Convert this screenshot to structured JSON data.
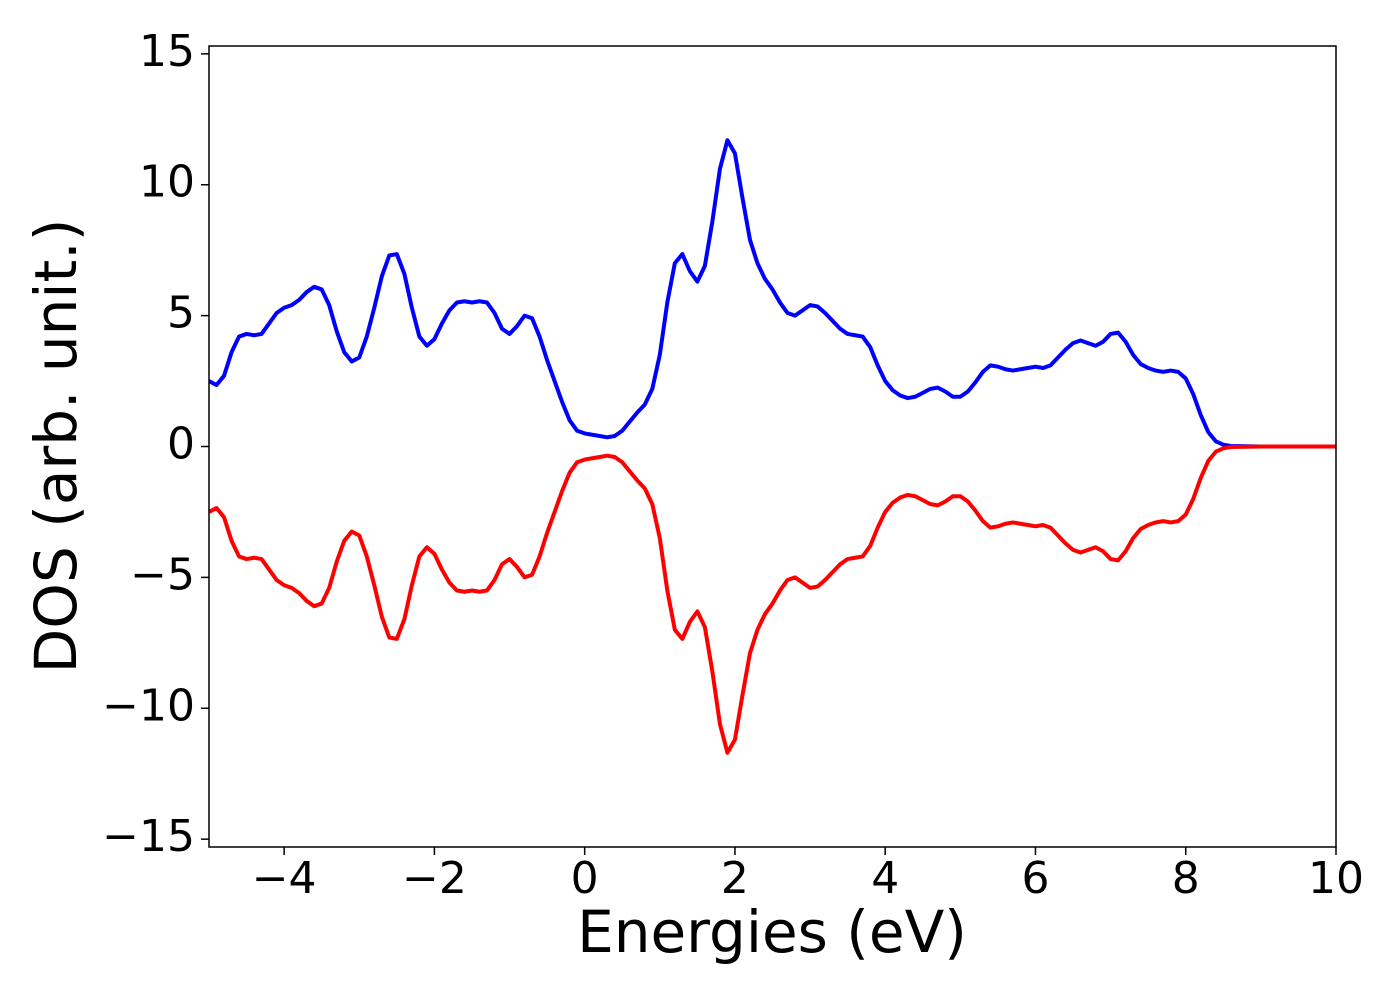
{
  "chart_data": {
    "type": "line",
    "xlabel": "Energies (eV)",
    "ylabel": "DOS (arb. unit.)",
    "x": [
      -5.0,
      -4.9,
      -4.8,
      -4.7,
      -4.6,
      -4.5,
      -4.4,
      -4.3,
      -4.2,
      -4.1,
      -4.0,
      -3.9,
      -3.8,
      -3.7,
      -3.6,
      -3.5,
      -3.4,
      -3.3,
      -3.2,
      -3.1,
      -3.0,
      -2.9,
      -2.8,
      -2.7,
      -2.6,
      -2.5,
      -2.4,
      -2.3,
      -2.2,
      -2.1,
      -2.0,
      -1.9,
      -1.8,
      -1.7,
      -1.6,
      -1.5,
      -1.4,
      -1.3,
      -1.2,
      -1.1,
      -1.0,
      -0.9,
      -0.8,
      -0.7,
      -0.6,
      -0.5,
      -0.4,
      -0.3,
      -0.2,
      -0.1,
      0.0,
      0.1,
      0.2,
      0.3,
      0.4,
      0.5,
      0.6,
      0.7,
      0.8,
      0.9,
      1.0,
      1.1,
      1.2,
      1.3,
      1.4,
      1.5,
      1.6,
      1.7,
      1.8,
      1.9,
      2.0,
      2.1,
      2.2,
      2.3,
      2.4,
      2.5,
      2.6,
      2.7,
      2.8,
      2.9,
      3.0,
      3.1,
      3.2,
      3.3,
      3.4,
      3.5,
      3.6,
      3.7,
      3.8,
      3.9,
      4.0,
      4.1,
      4.2,
      4.3,
      4.4,
      4.5,
      4.6,
      4.7,
      4.8,
      4.9,
      5.0,
      5.1,
      5.2,
      5.3,
      5.4,
      5.5,
      5.6,
      5.7,
      5.8,
      5.9,
      6.0,
      6.1,
      6.2,
      6.3,
      6.4,
      6.5,
      6.6,
      6.7,
      6.8,
      6.9,
      7.0,
      7.1,
      7.2,
      7.3,
      7.4,
      7.5,
      7.6,
      7.7,
      7.8,
      7.9,
      8.0,
      8.1,
      8.2,
      8.3,
      8.4,
      8.5,
      8.6,
      9.0,
      10.0
    ],
    "series": [
      {
        "color": "#0000ff",
        "values": [
          2.5,
          2.35,
          2.7,
          3.6,
          4.2,
          4.3,
          4.25,
          4.3,
          4.7,
          5.1,
          5.3,
          5.4,
          5.6,
          5.9,
          6.1,
          6.0,
          5.4,
          4.4,
          3.6,
          3.25,
          3.4,
          4.2,
          5.3,
          6.5,
          7.3,
          7.35,
          6.6,
          5.3,
          4.2,
          3.85,
          4.1,
          4.7,
          5.2,
          5.5,
          5.55,
          5.5,
          5.55,
          5.5,
          5.1,
          4.5,
          4.3,
          4.6,
          5.0,
          4.9,
          4.2,
          3.3,
          2.5,
          1.7,
          1.0,
          0.6,
          0.5,
          0.45,
          0.4,
          0.35,
          0.4,
          0.6,
          0.95,
          1.3,
          1.6,
          2.2,
          3.5,
          5.5,
          7.0,
          7.35,
          6.7,
          6.3,
          6.9,
          8.6,
          10.6,
          11.7,
          11.2,
          9.5,
          7.9,
          7.0,
          6.4,
          6.0,
          5.5,
          5.1,
          5.0,
          5.2,
          5.4,
          5.35,
          5.1,
          4.8,
          4.5,
          4.3,
          4.25,
          4.2,
          3.8,
          3.1,
          2.5,
          2.15,
          1.95,
          1.85,
          1.9,
          2.05,
          2.2,
          2.25,
          2.1,
          1.9,
          1.9,
          2.1,
          2.45,
          2.85,
          3.1,
          3.05,
          2.95,
          2.9,
          2.95,
          3.0,
          3.05,
          3.0,
          3.1,
          3.4,
          3.7,
          3.95,
          4.05,
          3.95,
          3.85,
          4.0,
          4.3,
          4.35,
          4.0,
          3.5,
          3.15,
          3.0,
          2.9,
          2.85,
          2.9,
          2.85,
          2.6,
          2.0,
          1.2,
          0.55,
          0.2,
          0.07,
          0.02,
          0,
          0
        ]
      },
      {
        "color": "#ff0000",
        "values": [
          -2.5,
          -2.35,
          -2.7,
          -3.6,
          -4.2,
          -4.3,
          -4.25,
          -4.3,
          -4.7,
          -5.1,
          -5.3,
          -5.4,
          -5.6,
          -5.9,
          -6.1,
          -6.0,
          -5.4,
          -4.4,
          -3.6,
          -3.25,
          -3.4,
          -4.2,
          -5.3,
          -6.5,
          -7.3,
          -7.35,
          -6.6,
          -5.3,
          -4.2,
          -3.85,
          -4.1,
          -4.7,
          -5.2,
          -5.5,
          -5.55,
          -5.5,
          -5.55,
          -5.5,
          -5.1,
          -4.5,
          -4.3,
          -4.6,
          -5.0,
          -4.9,
          -4.2,
          -3.3,
          -2.5,
          -1.7,
          -1.0,
          -0.6,
          -0.5,
          -0.45,
          -0.4,
          -0.35,
          -0.4,
          -0.6,
          -0.95,
          -1.3,
          -1.6,
          -2.2,
          -3.5,
          -5.5,
          -7.0,
          -7.35,
          -6.7,
          -6.3,
          -6.9,
          -8.6,
          -10.6,
          -11.7,
          -11.2,
          -9.5,
          -7.9,
          -7.0,
          -6.4,
          -6.0,
          -5.5,
          -5.1,
          -5.0,
          -5.2,
          -5.4,
          -5.35,
          -5.1,
          -4.8,
          -4.5,
          -4.3,
          -4.25,
          -4.2,
          -3.8,
          -3.1,
          -2.5,
          -2.15,
          -1.95,
          -1.85,
          -1.9,
          -2.05,
          -2.2,
          -2.25,
          -2.1,
          -1.9,
          -1.9,
          -2.1,
          -2.45,
          -2.85,
          -3.1,
          -3.05,
          -2.95,
          -2.9,
          -2.95,
          -3.0,
          -3.05,
          -3.0,
          -3.1,
          -3.4,
          -3.7,
          -3.95,
          -4.05,
          -3.95,
          -3.85,
          -4.0,
          -4.3,
          -4.35,
          -4.0,
          -3.5,
          -3.15,
          -3.0,
          -2.9,
          -2.85,
          -2.9,
          -2.85,
          -2.6,
          -2.0,
          -1.2,
          -0.55,
          -0.2,
          -0.07,
          -0.02,
          0,
          0
        ]
      }
    ],
    "xlim": [
      -5,
      10
    ],
    "xticks": [
      {
        "value": -4,
        "label": "−4"
      },
      {
        "value": -2,
        "label": "−2"
      },
      0,
      2,
      4,
      6,
      8,
      10
    ],
    "ylim": [
      -15.3,
      15.3
    ],
    "yticks": [
      {
        "value": -15,
        "label": "−15"
      },
      {
        "value": -10,
        "label": "−10"
      },
      {
        "value": -5,
        "label": "−5"
      },
      0,
      5,
      10,
      15
    ],
    "grid": false
  }
}
